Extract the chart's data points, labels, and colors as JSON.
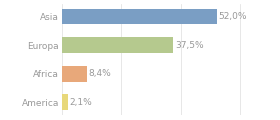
{
  "categories": [
    "America",
    "Africa",
    "Europa",
    "Asia"
  ],
  "values": [
    2.1,
    8.4,
    37.5,
    52.0
  ],
  "bar_colors": [
    "#e8d87a",
    "#e8a87a",
    "#b5c98e",
    "#7a9ec4"
  ],
  "labels": [
    "2,1%",
    "8,4%",
    "37,5%",
    "52,0%"
  ],
  "xlim": [
    0,
    62
  ],
  "background_color": "#ffffff",
  "text_color": "#999999",
  "label_fontsize": 6.5,
  "tick_fontsize": 6.5,
  "bar_height": 0.55,
  "figsize": [
    2.8,
    1.2
  ],
  "dpi": 100,
  "grid_color": "#dddddd",
  "grid_linewidth": 0.5
}
